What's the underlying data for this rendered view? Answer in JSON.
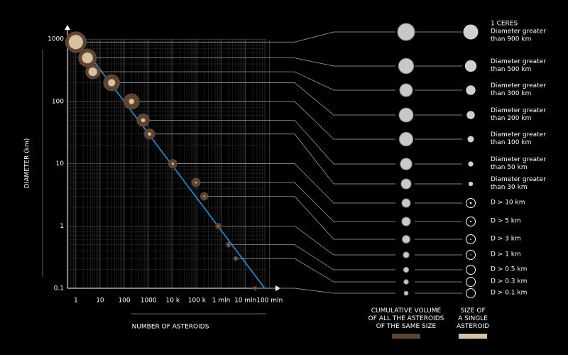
{
  "chart_data": {
    "type": "scatter",
    "xlabel": "NUMBER OF ASTEROIDS",
    "ylabel": "DIAMETER (km)",
    "xscale": "log",
    "yscale": "log",
    "grid": true,
    "xlim": [
      0.45,
      280000000
    ],
    "ylim": [
      0.1,
      1700
    ],
    "xticks": [
      1,
      10,
      100,
      1000,
      {
        "value": 10000,
        "label": "10 k"
      },
      {
        "value": 100000,
        "label": "100 k"
      },
      {
        "value": 1000000,
        "label": "1 mln"
      },
      {
        "value": 10000000,
        "label": "10 mln"
      },
      {
        "value": 100000000,
        "label": "100 mln"
      }
    ],
    "yticks": [
      0.1,
      1,
      10,
      100,
      1000
    ],
    "x": [
      1,
      3,
      5,
      30,
      200,
      600,
      1100,
      10000,
      90000,
      200000,
      760000,
      2000000,
      4000000,
      25000000
    ],
    "values": [
      900,
      500,
      300,
      200,
      100,
      50,
      30,
      10,
      5,
      3,
      1,
      0.5,
      0.3,
      0.1
    ],
    "labels": [
      "1 CERES\nDiameter greater\nthan 900 km",
      "Diameter greater\nthan 500 km",
      "Diameter greater\nthan 300 km",
      "Diameter greater\nthan 200 km",
      "Diameter greater\nthan 100 km",
      "Diameter greater\nthan 50 km",
      "Diameter greater\nthan 30 km",
      "D > 10 km",
      "D > 5 km",
      "D > 3 km",
      "D > 1 km",
      "D > 0.5 km",
      "D > 0.3 km",
      "D > 0.1 km"
    ],
    "legend": [
      {
        "name": "CUMULATIVE VOLUME\nOF ALL THE ASTEROIDS\nOF THE SAME SIZE",
        "color": "#5e4532"
      },
      {
        "name": "SIZE OF\nA SINGLE\nASTEROID",
        "color": "#d8c0a2"
      }
    ],
    "trend_color": "#2a8fd6"
  }
}
